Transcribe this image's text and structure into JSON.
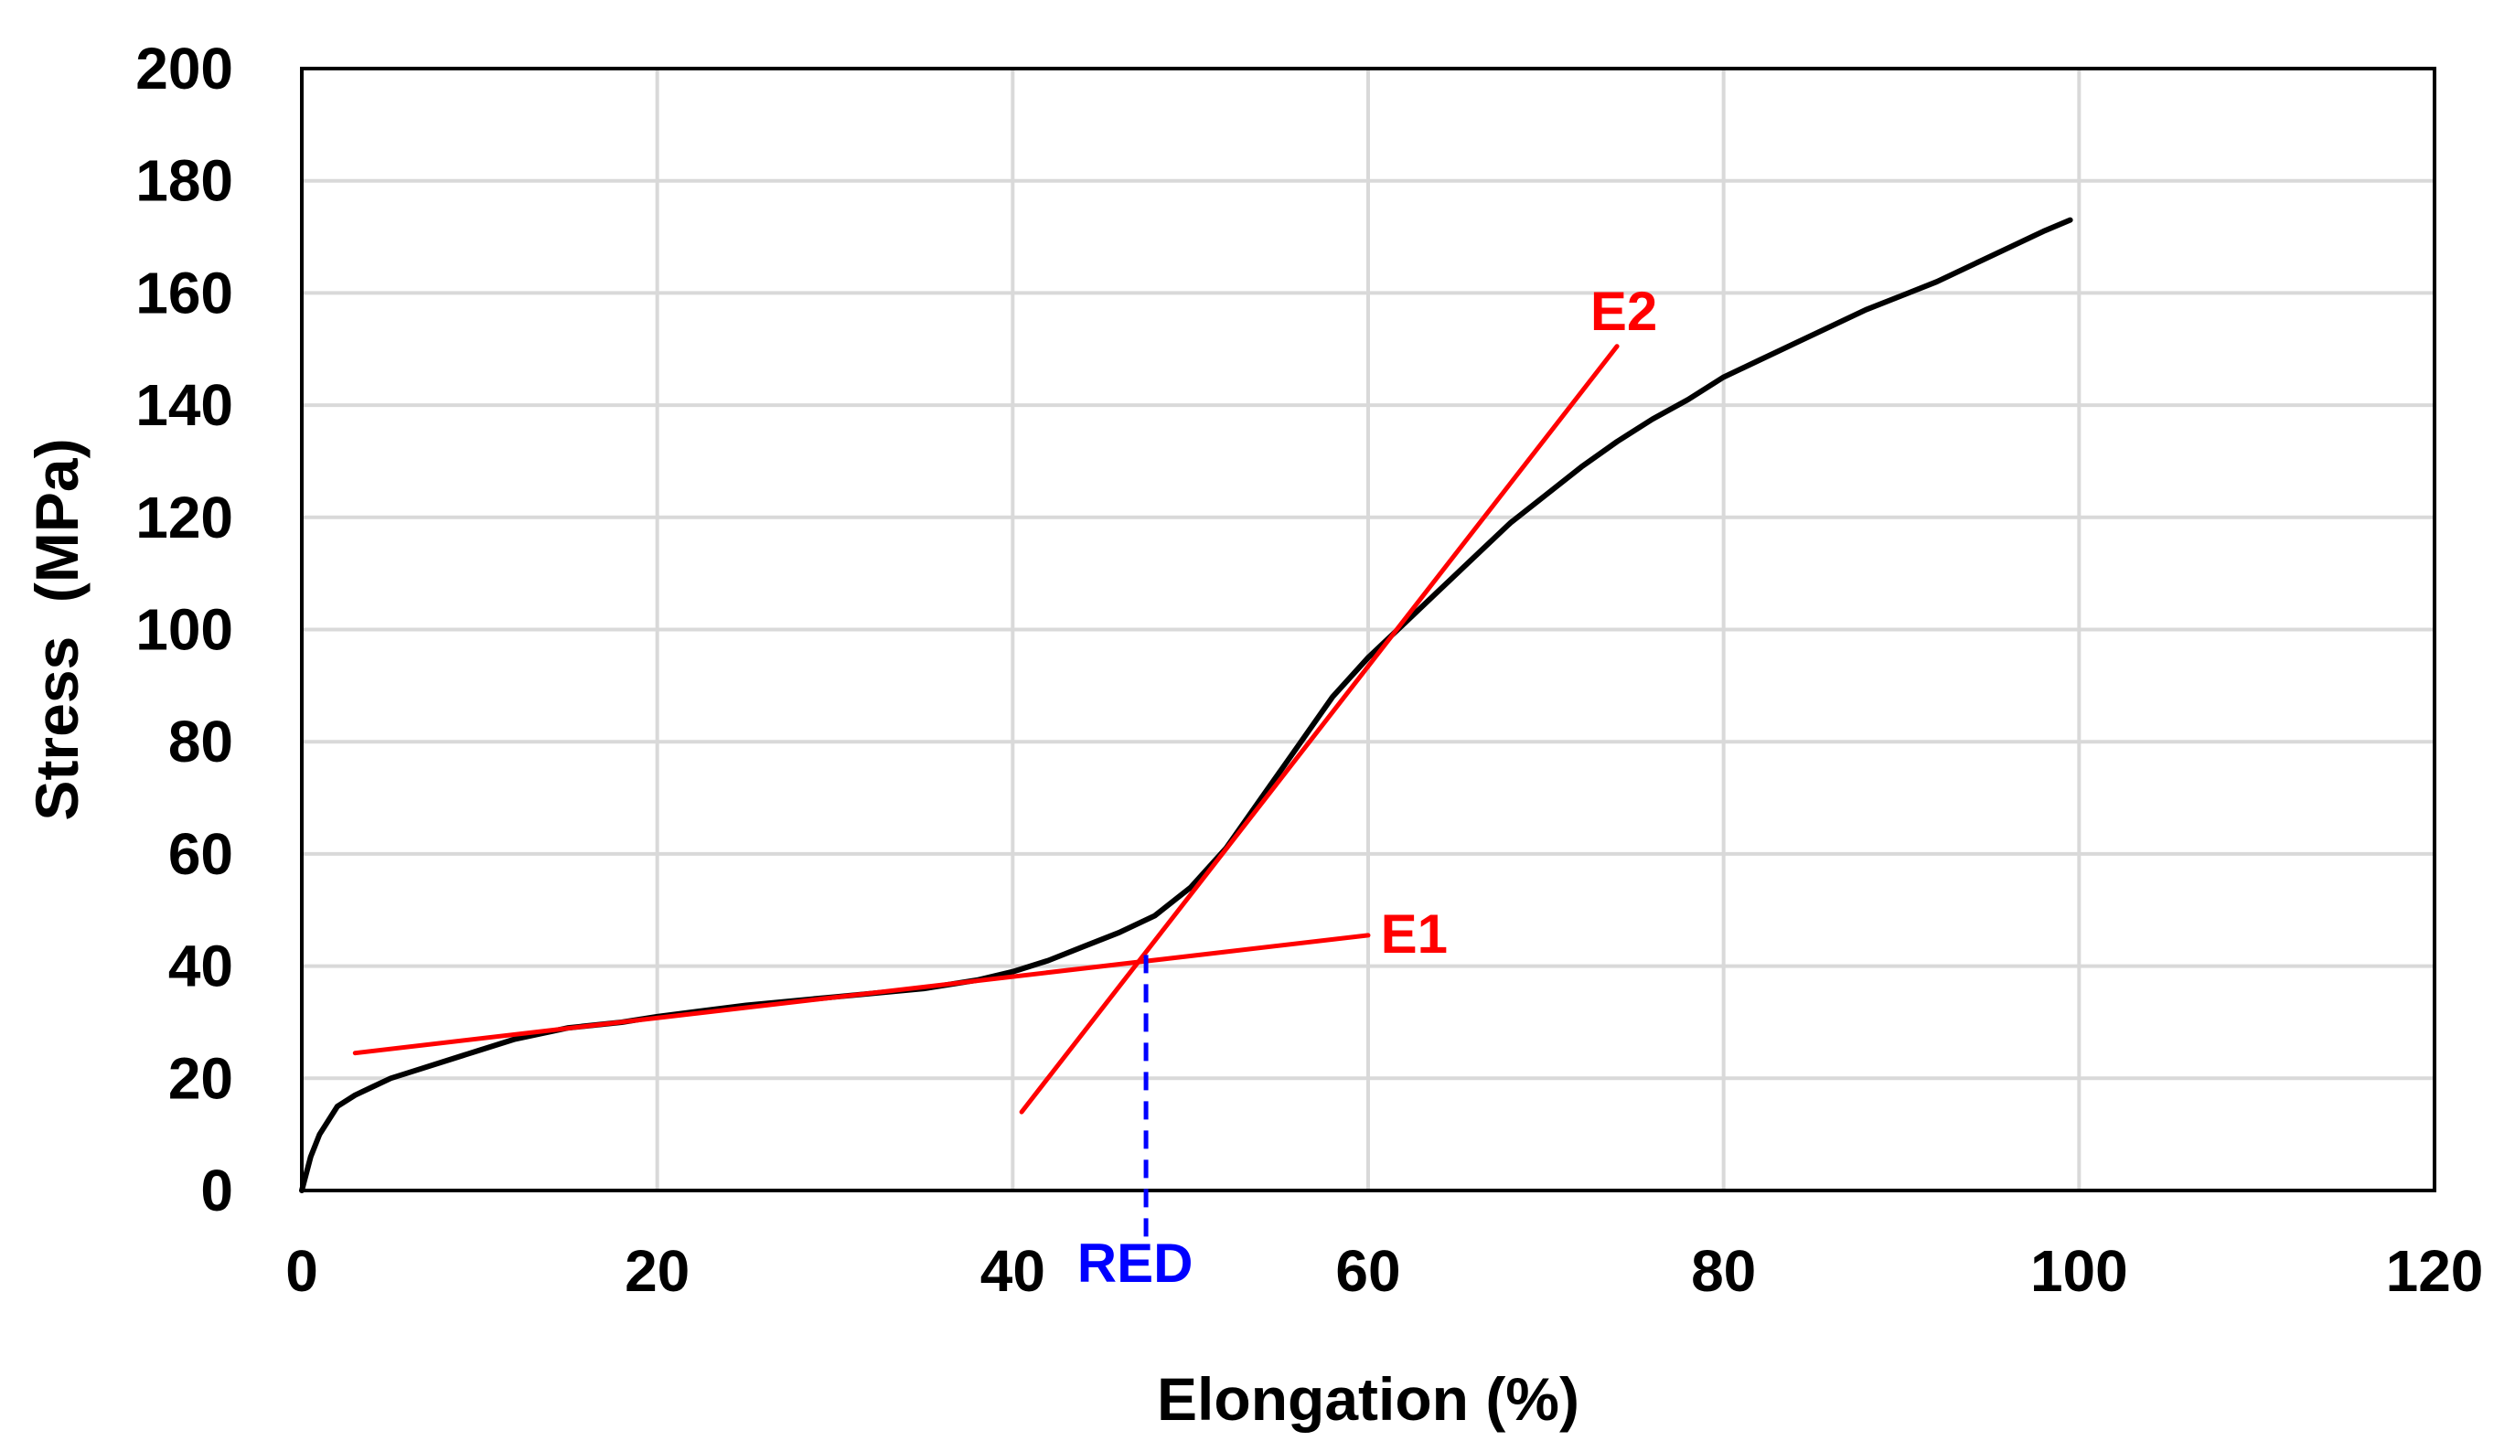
{
  "chart_data": {
    "type": "line",
    "xlabel": "Elongation (%)",
    "ylabel": "Stress  (MPa)",
    "xlim": [
      0,
      120
    ],
    "ylim": [
      0,
      200
    ],
    "x_ticks": [
      0,
      20,
      40,
      60,
      80,
      100,
      120
    ],
    "y_ticks": [
      0,
      20,
      40,
      60,
      80,
      100,
      120,
      140,
      160,
      180,
      200
    ],
    "grid": true,
    "series": [
      {
        "color": "#000000",
        "x": [
          0,
          0.5,
          1,
          2,
          3,
          4,
          5,
          6,
          8,
          10,
          12,
          15,
          18,
          20,
          25,
          30,
          35,
          38,
          40,
          42,
          44,
          46,
          48,
          50,
          52,
          54,
          56,
          58,
          60,
          62,
          64,
          66,
          68,
          70,
          72,
          74,
          76,
          78,
          80,
          82,
          84,
          86,
          88,
          90,
          92,
          94,
          96,
          98,
          99.5
        ],
        "y": [
          0,
          6,
          10,
          15,
          17,
          18.5,
          20,
          21,
          23,
          25,
          27,
          29,
          30,
          31,
          33,
          34.5,
          36,
          37.5,
          39,
          41,
          43.5,
          46,
          49,
          54,
          61,
          70,
          79,
          88,
          95,
          101,
          107,
          113,
          119,
          124,
          129,
          133.5,
          137.5,
          141,
          145,
          148,
          151,
          154,
          157,
          159.5,
          162,
          165,
          168,
          171,
          173
        ]
      },
      {
        "name": "E1",
        "color": "#ff0000",
        "x": [
          3,
          60
        ],
        "y": [
          24.5,
          45.5
        ]
      },
      {
        "name": "E2",
        "color": "#ff0000",
        "x": [
          40.5,
          74
        ],
        "y": [
          14,
          150.5
        ]
      }
    ],
    "annotations": [
      {
        "text": "E1",
        "x": 60.7,
        "y": 46,
        "color": "#ff0000"
      },
      {
        "text": "E2",
        "x": 72.5,
        "y": 157,
        "color": "#ff0000"
      },
      {
        "text": "RED",
        "x": 47.5,
        "y": 42,
        "color": "#0000ff",
        "style": "dashed-drop-line"
      }
    ]
  }
}
